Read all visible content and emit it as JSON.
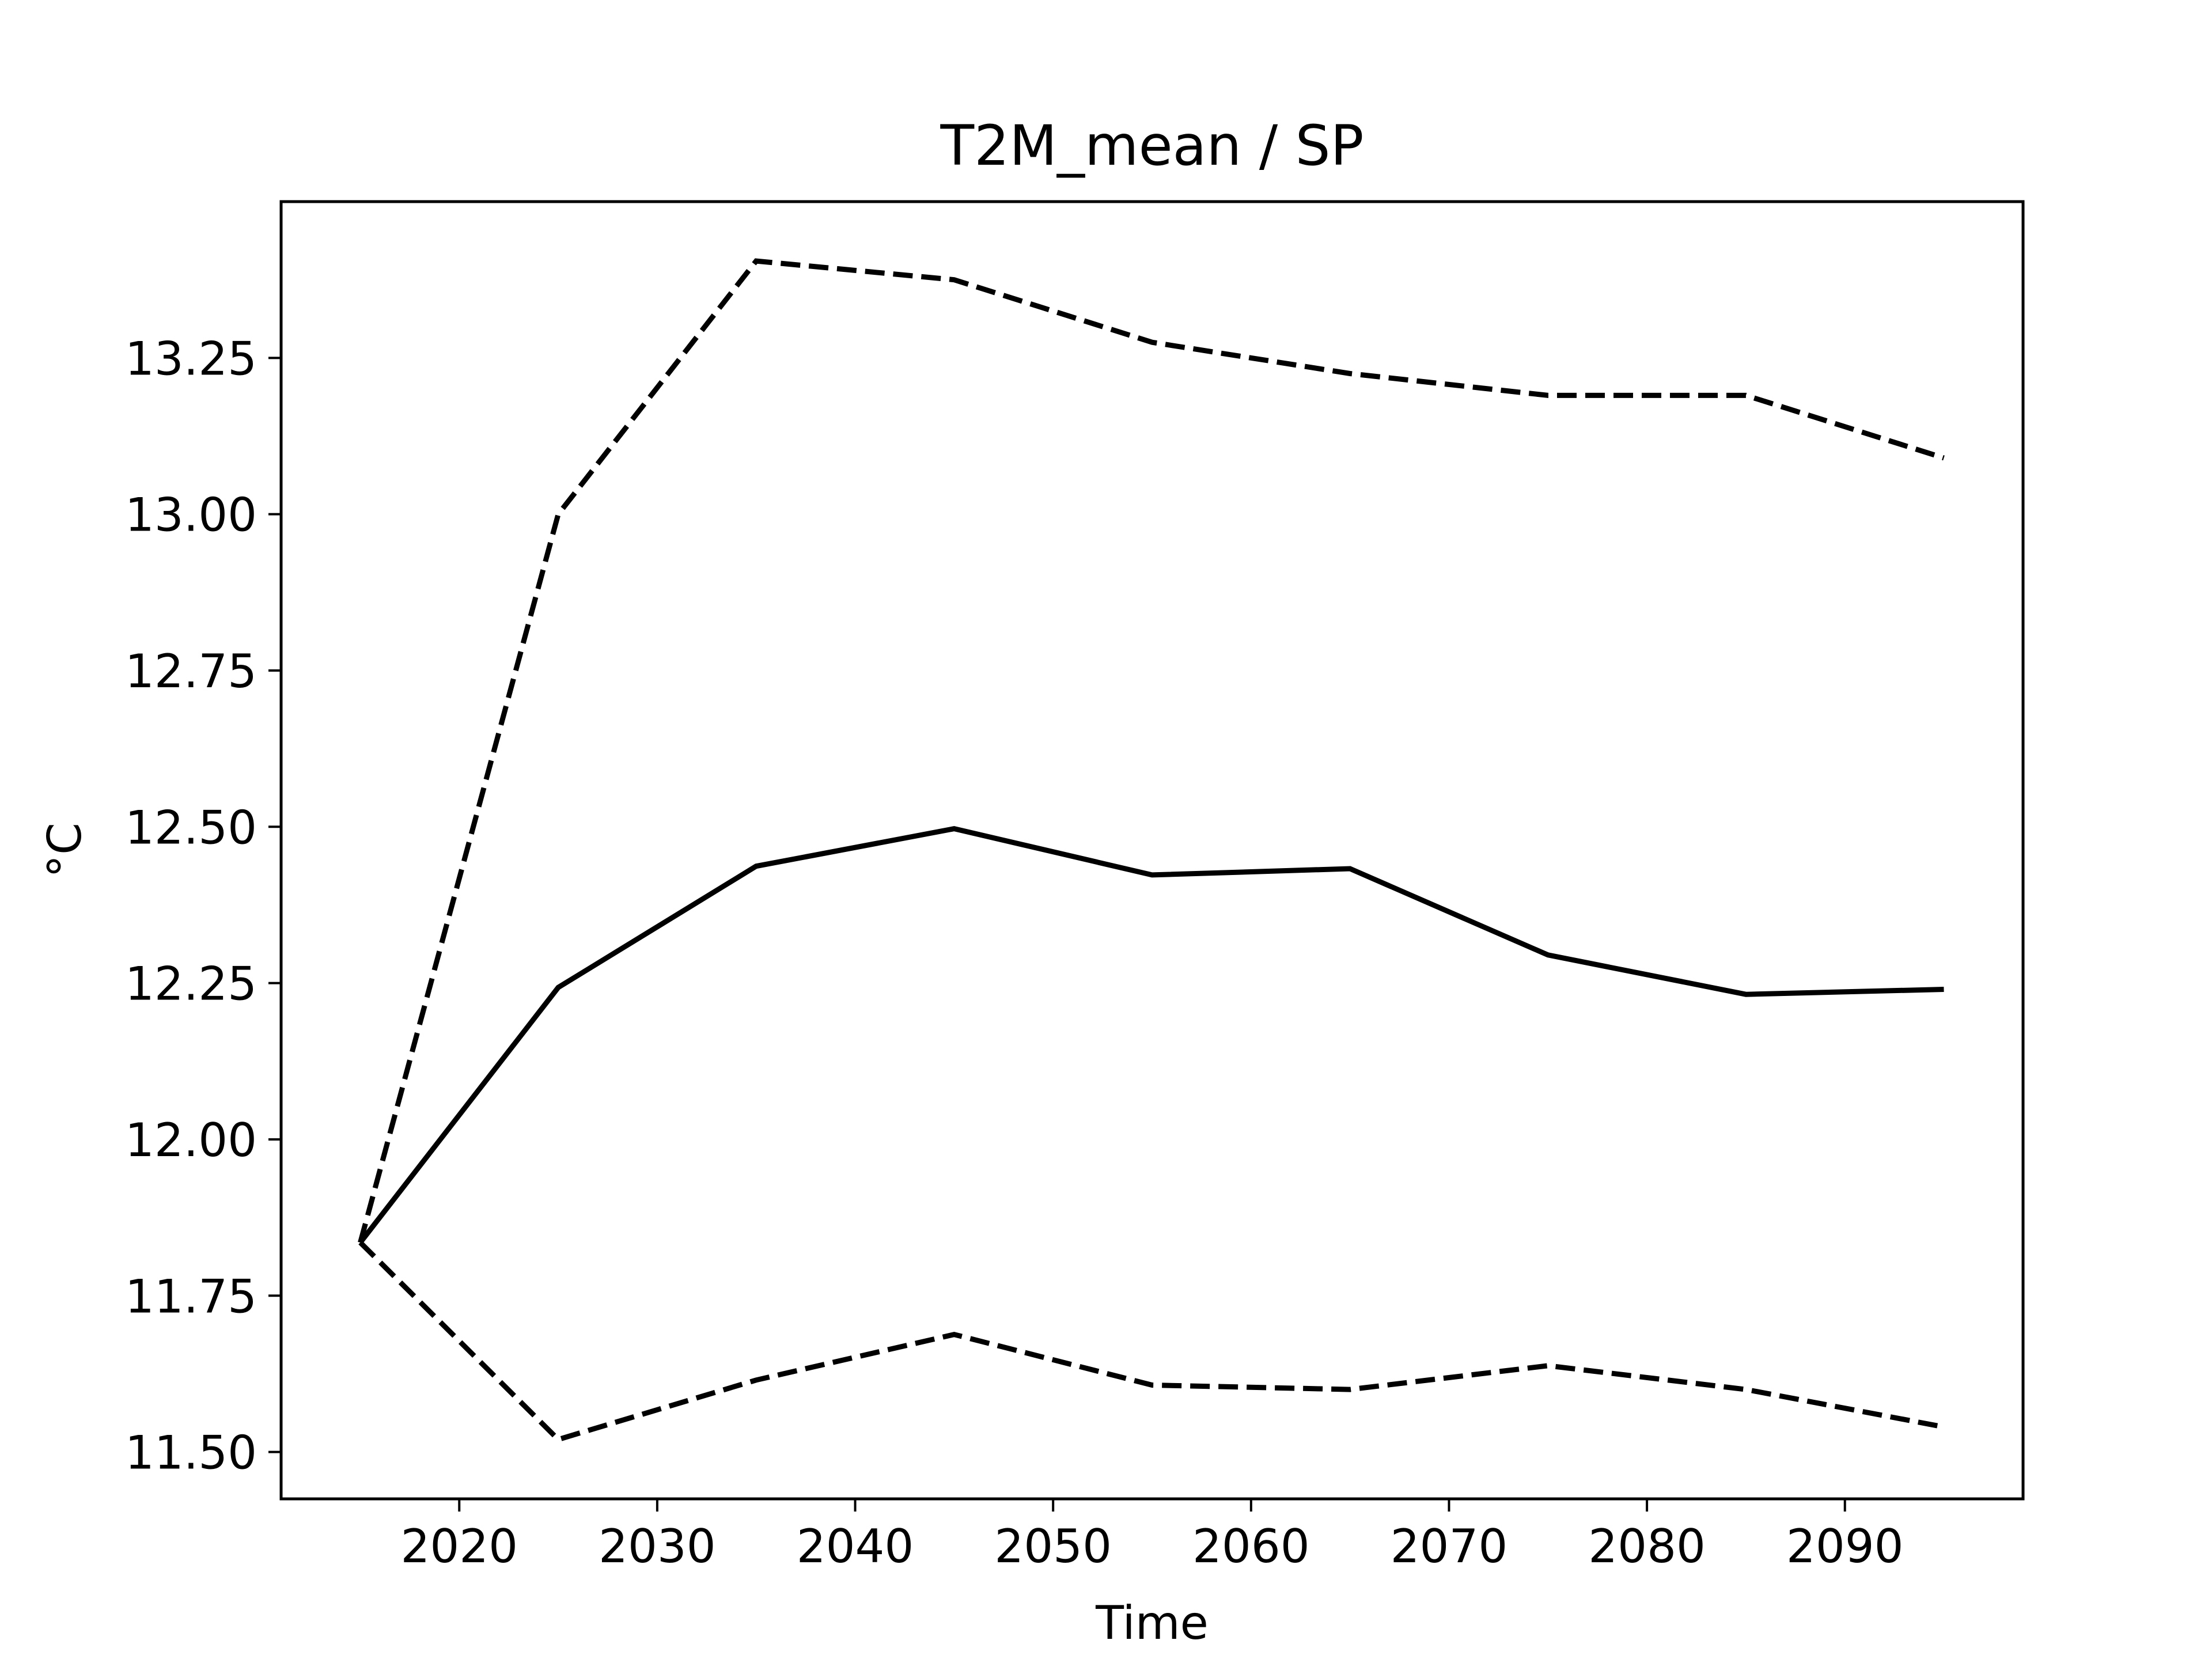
{
  "chart_data": {
    "type": "line",
    "title": "T2M_mean / SP",
    "xlabel": "Time",
    "ylabel": "°C",
    "xlim": [
      2011,
      2099
    ],
    "ylim": [
      11.425,
      13.5
    ],
    "x_ticks": [
      2020,
      2030,
      2040,
      2050,
      2060,
      2070,
      2080,
      2090
    ],
    "x_tick_labels": [
      "2020",
      "2030",
      "2040",
      "2050",
      "2060",
      "2070",
      "2080",
      "2090"
    ],
    "y_ticks": [
      11.5,
      11.75,
      12.0,
      12.25,
      12.5,
      12.75,
      13.0,
      13.25
    ],
    "y_tick_labels": [
      "11.50",
      "11.75",
      "12.00",
      "12.25",
      "12.50",
      "12.75",
      "13.00",
      "13.25"
    ],
    "grid": false,
    "x": [
      2015,
      2025,
      2035,
      2045,
      2055,
      2065,
      2075,
      2085,
      2095
    ],
    "series": [
      {
        "style": "dashed",
        "color": "#000000",
        "values": [
          11.835,
          13.0,
          13.405,
          13.375,
          13.275,
          13.225,
          13.19,
          13.19,
          13.09
        ]
      },
      {
        "style": "solid",
        "color": "#000000",
        "values": [
          11.835,
          12.243,
          12.437,
          12.497,
          12.423,
          12.433,
          12.295,
          12.232,
          12.24
        ]
      },
      {
        "style": "dashed",
        "color": "#000000",
        "values": [
          11.835,
          11.52,
          11.615,
          11.688,
          11.607,
          11.6,
          11.638,
          11.6,
          11.54
        ]
      }
    ]
  }
}
